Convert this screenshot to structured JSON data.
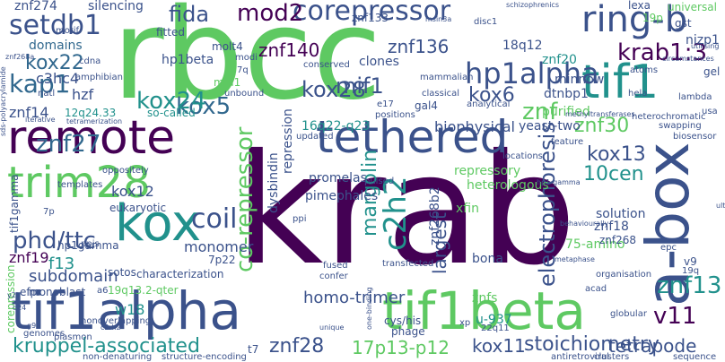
{
  "words": [
    {
      "text": "krab",
      "color": "#440154",
      "size": 170
    },
    {
      "text": "rbcc",
      "color": "#5ec962",
      "size": 140
    },
    {
      "text": "tethered",
      "color": "#3b528b",
      "size": 50
    },
    {
      "text": "remote",
      "color": "#440154",
      "size": 52
    },
    {
      "text": "trim28",
      "color": "#5ec962",
      "size": 48
    },
    {
      "text": "kox",
      "color": "#21918c",
      "size": 56
    },
    {
      "text": "tif1alpha",
      "color": "#3b528b",
      "size": 58
    },
    {
      "text": "tif1beta",
      "color": "#5ec962",
      "size": 58
    },
    {
      "text": "a-box",
      "color": "#3b528b",
      "size": 66
    },
    {
      "text": "ring-b",
      "color": "#3b528b",
      "size": 40
    },
    {
      "text": "tif1",
      "color": "#21918c",
      "size": 52
    },
    {
      "text": "corepressor",
      "color": "#3b528b",
      "size": 30
    },
    {
      "text": "setdb1",
      "color": "#3b528b",
      "size": 30
    },
    {
      "text": "hp1alpha",
      "color": "#3b528b",
      "size": 32
    },
    {
      "text": "kap1",
      "color": "#31688e",
      "size": 28
    },
    {
      "text": "kox22",
      "color": "#31688e",
      "size": 22
    },
    {
      "text": "krab1:3",
      "color": "#440154",
      "size": 26
    },
    {
      "text": "kox5",
      "color": "#31688e",
      "size": 26
    },
    {
      "text": "kox24",
      "color": "#21918c",
      "size": 26
    },
    {
      "text": "mod2",
      "color": "#440154",
      "size": 26
    },
    {
      "text": "znf140",
      "color": "#440154",
      "size": 20
    },
    {
      "text": "znf136",
      "color": "#3b528b",
      "size": 20
    },
    {
      "text": "fida",
      "color": "#3b528b",
      "size": 24
    },
    {
      "text": "kox28",
      "color": "#3b528b",
      "size": 24
    },
    {
      "text": "mif1",
      "color": "#3b528b",
      "size": 24
    },
    {
      "text": "kox6",
      "color": "#3b528b",
      "size": 22
    },
    {
      "text": "znf",
      "color": "#5ec962",
      "size": 26
    },
    {
      "text": "znf30",
      "color": "#5ec962",
      "size": 22
    },
    {
      "text": "kox13",
      "color": "#3b528b",
      "size": 22
    },
    {
      "text": "10cen",
      "color": "#21918c",
      "size": 22
    },
    {
      "text": "znf27",
      "color": "#31688e",
      "size": 26
    },
    {
      "text": "coil",
      "color": "#3b528b",
      "size": 30
    },
    {
      "text": "phd/ttc",
      "color": "#3b528b",
      "size": 26
    },
    {
      "text": "c2h2",
      "color": "#21918c",
      "size": 34
    },
    {
      "text": "margolin",
      "color": "#21918c",
      "size": 22
    },
    {
      "text": "co-repressor",
      "color": "#5ec962",
      "size": 26
    },
    {
      "text": "electrophoresis",
      "color": "#3b528b",
      "size": 24
    },
    {
      "text": "largest",
      "color": "#3b528b",
      "size": 20
    },
    {
      "text": "znf13",
      "color": "#21918c",
      "size": 26
    },
    {
      "text": "v11",
      "color": "#440154",
      "size": 26
    },
    {
      "text": "kruppel-associated",
      "color": "#21918c",
      "size": 22
    },
    {
      "text": "znf28",
      "color": "#3b528b",
      "size": 22
    },
    {
      "text": "17p13-p12",
      "color": "#5ec962",
      "size": 20
    },
    {
      "text": "kox11",
      "color": "#3b528b",
      "size": 20
    },
    {
      "text": "stoichiometry",
      "color": "#3b528b",
      "size": 22
    },
    {
      "text": "tetrapode",
      "color": "#3b528b",
      "size": 20
    },
    {
      "text": "homo-trimer",
      "color": "#3b528b",
      "size": 18
    },
    {
      "text": "monomer",
      "color": "#3b528b",
      "size": 16
    },
    {
      "text": "znf19",
      "color": "#440154",
      "size": 16
    },
    {
      "text": "f13",
      "color": "#21918c",
      "size": 18
    },
    {
      "text": "subdomain",
      "color": "#3b528b",
      "size": 18
    },
    {
      "text": "w18",
      "color": "#21918c",
      "size": 16
    },
    {
      "text": "kox12",
      "color": "#3b528b",
      "size": 16
    },
    {
      "text": "hzf",
      "color": "#3b528b",
      "size": 16
    },
    {
      "text": "znf14",
      "color": "#3b528b",
      "size": 16
    },
    {
      "text": "c3hc4",
      "color": "#3b528b",
      "size": 16
    },
    {
      "text": "domains",
      "color": "#31688e",
      "size": 14
    },
    {
      "text": "biophysical",
      "color": "#3b528b",
      "size": 16
    },
    {
      "text": "repression",
      "color": "#3b528b",
      "size": 14
    },
    {
      "text": "dysbindin",
      "color": "#3b528b",
      "size": 14
    },
    {
      "text": "promelas",
      "color": "#3b528b",
      "size": 14
    },
    {
      "text": "pimephales",
      "color": "#3b528b",
      "size": 14
    },
    {
      "text": "16q22-q23",
      "color": "#21918c",
      "size": 14
    },
    {
      "text": "repressory",
      "color": "#5ec962",
      "size": 14
    },
    {
      "text": "heterologous",
      "color": "#5ec962",
      "size": 14
    },
    {
      "text": "75-amino",
      "color": "#5ec962",
      "size": 14
    },
    {
      "text": "solution",
      "color": "#3b528b",
      "size": 14
    },
    {
      "text": "znf18",
      "color": "#3b528b",
      "size": 14
    },
    {
      "text": "znf268",
      "color": "#3b528b",
      "size": 12
    },
    {
      "text": "znf268b2",
      "color": "#3b528b",
      "size": 14
    },
    {
      "text": "xfin",
      "color": "#5ec962",
      "size": 14
    },
    {
      "text": "bona",
      "color": "#3b528b",
      "size": 14
    },
    {
      "text": "znfs",
      "color": "#5ec962",
      "size": 14
    },
    {
      "text": "u-937",
      "color": "#21918c",
      "size": 14
    },
    {
      "text": "yeast-two",
      "color": "#3b528b",
      "size": 14
    },
    {
      "text": "purified",
      "color": "#5ec962",
      "size": 14
    },
    {
      "text": "dtnbp1",
      "color": "#3b528b",
      "size": 14
    },
    {
      "text": "minnow",
      "color": "#3b528b",
      "size": 14
    },
    {
      "text": "znf20",
      "color": "#21918c",
      "size": 14
    },
    {
      "text": "18q12",
      "color": "#3b528b",
      "size": 14
    },
    {
      "text": "clones",
      "color": "#3b528b",
      "size": 14
    },
    {
      "text": "znf133",
      "color": "#3b528b",
      "size": 12
    },
    {
      "text": "molt4",
      "color": "#3b528b",
      "size": 12
    },
    {
      "text": "mid1",
      "color": "#5ec962",
      "size": 12
    },
    {
      "text": "hp1beta",
      "color": "#3b528b",
      "size": 14
    },
    {
      "text": "fitted",
      "color": "#3b528b",
      "size": 12
    },
    {
      "text": "silencing",
      "color": "#3b528b",
      "size": 14
    },
    {
      "text": "znf274",
      "color": "#3b528b",
      "size": 14
    },
    {
      "text": "so-called",
      "color": "#21918c",
      "size": 12
    },
    {
      "text": "12q24.33",
      "color": "#21918c",
      "size": 12
    },
    {
      "text": "eukaryotic",
      "color": "#3b528b",
      "size": 12
    },
    {
      "text": "oppositely",
      "color": "#3b528b",
      "size": 10
    },
    {
      "text": "sotos",
      "color": "#3b528b",
      "size": 12
    },
    {
      "text": "hp1gamma",
      "color": "#3b528b",
      "size": 12
    },
    {
      "text": "characterization",
      "color": "#3b528b",
      "size": 12
    },
    {
      "text": "7p22",
      "color": "#3b528b",
      "size": 12
    },
    {
      "text": "19q13.2-qter",
      "color": "#5ec962",
      "size": 12
    },
    {
      "text": "monoblast",
      "color": "#3b528b",
      "size": 12
    },
    {
      "text": "tif1gamma",
      "color": "#3b528b",
      "size": 12
    },
    {
      "text": "efp",
      "color": "#3b528b",
      "size": 12
    },
    {
      "text": "corepression",
      "color": "#5ec962",
      "size": 12
    },
    {
      "text": "nonoverlapping",
      "color": "#3b528b",
      "size": 10
    },
    {
      "text": "plasmon",
      "color": "#3b528b",
      "size": 10
    },
    {
      "text": "genomes",
      "color": "#3b528b",
      "size": 10
    },
    {
      "text": "non-denaturing",
      "color": "#3b528b",
      "size": 10
    },
    {
      "text": "structure-encoding",
      "color": "#3b528b",
      "size": 10
    },
    {
      "text": "t7",
      "color": "#3b528b",
      "size": 12
    },
    {
      "text": "nizp1",
      "color": "#3b528b",
      "size": 14
    },
    {
      "text": "universal",
      "color": "#5ec962",
      "size": 12
    },
    {
      "text": "gst",
      "color": "#3b528b",
      "size": 12
    },
    {
      "text": "lexa",
      "color": "#3b528b",
      "size": 12
    },
    {
      "text": "19p",
      "color": "#5ec962",
      "size": 12
    },
    {
      "text": "gel",
      "color": "#3b528b",
      "size": 12
    },
    {
      "text": "lambda",
      "color": "#3b528b",
      "size": 10
    },
    {
      "text": "biosensor",
      "color": "#3b528b",
      "size": 10
    },
    {
      "text": "heterochromatic",
      "color": "#3b528b",
      "size": 10
    },
    {
      "text": "swapping",
      "color": "#3b528b",
      "size": 10
    },
    {
      "text": "methyltransferases",
      "color": "#3b528b",
      "size": 8
    },
    {
      "text": "feature",
      "color": "#3b528b",
      "size": 10
    },
    {
      "text": "gal4",
      "color": "#3b528b",
      "size": 12
    },
    {
      "text": "locations",
      "color": "#3b528b",
      "size": 10
    },
    {
      "text": "clusters",
      "color": "#3b528b",
      "size": 10
    },
    {
      "text": "antiretroviral",
      "color": "#3b528b",
      "size": 10
    },
    {
      "text": "sequence",
      "color": "#3b528b",
      "size": 10
    },
    {
      "text": "globular",
      "color": "#3b528b",
      "size": 10
    },
    {
      "text": "organisation",
      "color": "#3b528b",
      "size": 10
    },
    {
      "text": "acad",
      "color": "#3b528b",
      "size": 10
    },
    {
      "text": "epc",
      "color": "#3b528b",
      "size": 10
    },
    {
      "text": "19q",
      "color": "#3b528b",
      "size": 10
    },
    {
      "text": "v9",
      "color": "#3b528b",
      "size": 12
    },
    {
      "text": "cys/his",
      "color": "#3b528b",
      "size": 12
    },
    {
      "text": "phage",
      "color": "#3b528b",
      "size": 12
    },
    {
      "text": "22q11",
      "color": "#3b528b",
      "size": 10
    },
    {
      "text": "xp",
      "color": "#3b528b",
      "size": 10
    },
    {
      "text": "confer",
      "color": "#3b528b",
      "size": 10
    },
    {
      "text": "fused",
      "color": "#3b528b",
      "size": 10
    },
    {
      "text": "transfected",
      "color": "#3b528b",
      "size": 10
    },
    {
      "text": "ppi",
      "color": "#3b528b",
      "size": 10
    },
    {
      "text": "pulsed",
      "color": "#3b528b",
      "size": 10
    },
    {
      "text": "templates",
      "color": "#3b528b",
      "size": 10
    },
    {
      "text": "a6",
      "color": "#3b528b",
      "size": 10
    },
    {
      "text": "ppis",
      "color": "#3b528b",
      "size": 10
    },
    {
      "text": "7p",
      "color": "#3b528b",
      "size": 10
    },
    {
      "text": "cdna",
      "color": "#3b528b",
      "size": 10
    },
    {
      "text": "amphibian",
      "color": "#3b528b",
      "size": 10
    },
    {
      "text": "motif",
      "color": "#3b528b",
      "size": 10
    },
    {
      "text": "natl",
      "color": "#3b528b",
      "size": 10
    },
    {
      "text": "unbound",
      "color": "#3b528b",
      "size": 10
    },
    {
      "text": "modi",
      "color": "#3b528b",
      "size": 10
    },
    {
      "text": "7q",
      "color": "#3b528b",
      "size": 10
    },
    {
      "text": "conserved",
      "color": "#3b528b",
      "size": 10
    },
    {
      "text": "mammalian",
      "color": "#3b528b",
      "size": 10
    },
    {
      "text": "classical",
      "color": "#3b528b",
      "size": 10
    },
    {
      "text": "e17",
      "color": "#3b528b",
      "size": 10
    },
    {
      "text": "positions",
      "color": "#3b528b",
      "size": 10
    },
    {
      "text": "analytical",
      "color": "#3b528b",
      "size": 10
    },
    {
      "text": "atoms",
      "color": "#3b528b",
      "size": 10
    },
    {
      "text": "hela",
      "color": "#3b528b",
      "size": 10
    },
    {
      "text": "disc1",
      "color": "#3b528b",
      "size": 10
    },
    {
      "text": "msin3a",
      "color": "#3b528b",
      "size": 8
    },
    {
      "text": "updated",
      "color": "#3b528b",
      "size": 10
    },
    {
      "text": "schizophrenics",
      "color": "#3b528b",
      "size": 8
    },
    {
      "text": "circumstances",
      "color": "#3b528b",
      "size": 8
    },
    {
      "text": "iterative",
      "color": "#3b528b",
      "size": 8
    },
    {
      "text": "tetramerization",
      "color": "#3b528b",
      "size": 8
    },
    {
      "text": "usa",
      "color": "#3b528b",
      "size": 10
    },
    {
      "text": "sds-polyacrylamide",
      "color": "#3b528b",
      "size": 8
    },
    {
      "text": "one-binding",
      "color": "#3b528b",
      "size": 8
    },
    {
      "text": "unique",
      "color": "#3b528b",
      "size": 8
    },
    {
      "text": "c2-h2",
      "color": "#3b528b",
      "size": 8
    },
    {
      "text": "q24",
      "color": "#3b528b",
      "size": 8
    },
    {
      "text": "g9a",
      "color": "#3b528b",
      "size": 8
    },
    {
      "text": "y2h",
      "color": "#3b528b",
      "size": 8
    },
    {
      "text": "hp1-gamma",
      "color": "#3b528b",
      "size": 8
    },
    {
      "text": "metaphase",
      "color": "#3b528b",
      "size": 8
    },
    {
      "text": "behaviourally",
      "color": "#3b528b",
      "size": 8
    },
    {
      "text": "ultracentrifugation",
      "color": "#3b528b",
      "size": 8
    },
    {
      "text": "utilising",
      "color": "#3b528b",
      "size": 8
    },
    {
      "text": "znf268a",
      "color": "#3b528b",
      "size": 8
    }
  ]
}
